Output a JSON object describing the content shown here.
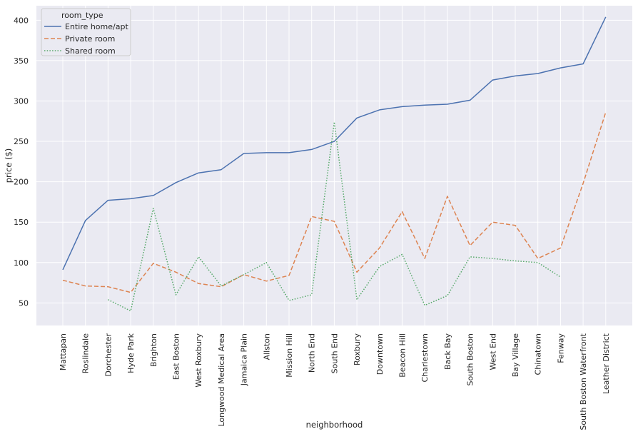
{
  "chart_data": {
    "type": "line",
    "xlabel": "neighborhood",
    "ylabel": "price ($)",
    "ylim": [
      22,
      418
    ],
    "yticks": [
      50,
      100,
      150,
      200,
      250,
      300,
      350,
      400
    ],
    "grid": true,
    "legend": {
      "title": "room_type",
      "placement": "top-left"
    },
    "categories": [
      "Mattapan",
      "Roslindale",
      "Dorchester",
      "Hyde Park",
      "Brighton",
      "East Boston",
      "West Roxbury",
      "Longwood Medical Area",
      "Jamaica Plain",
      "Allston",
      "Mission Hill",
      "North End",
      "South End",
      "Roxbury",
      "Downtown",
      "Beacon Hill",
      "Charlestown",
      "Back Bay",
      "South Boston",
      "West End",
      "Bay Village",
      "Chinatown",
      "Fenway",
      "South Boston Waterfront",
      "Leather District"
    ],
    "series": [
      {
        "name": "Entire home/apt",
        "color": "#4c72b0",
        "dash": "solid",
        "values": [
          91,
          152,
          177,
          179,
          183,
          199,
          211,
          215,
          235,
          236,
          236,
          240,
          250,
          279,
          289,
          293,
          295,
          296,
          301,
          326,
          331,
          334,
          341,
          346,
          404
        ]
      },
      {
        "name": "Private room",
        "color": "#dd8452",
        "dash": "dashed",
        "values": [
          78,
          71,
          70,
          63,
          99,
          88,
          74,
          70,
          85,
          77,
          84,
          157,
          151,
          88,
          118,
          163,
          105,
          182,
          121,
          150,
          146,
          105,
          118,
          198,
          286
        ]
      },
      {
        "name": "Shared room",
        "color": "#55a868",
        "dash": "dotted",
        "values": [
          null,
          null,
          54,
          40,
          167,
          60,
          107,
          71,
          85,
          100,
          53,
          60,
          274,
          54,
          95,
          110,
          47,
          59,
          107,
          105,
          102,
          100,
          82,
          null,
          null
        ]
      }
    ]
  }
}
